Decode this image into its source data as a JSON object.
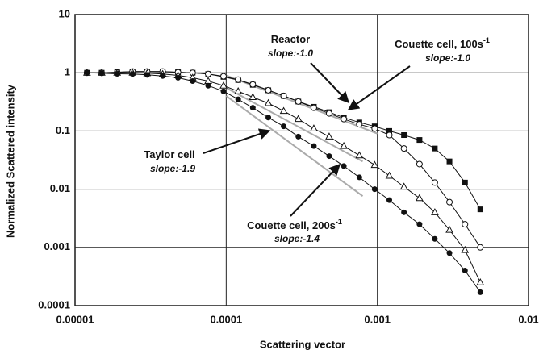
{
  "chart_data": {
    "type": "scatter",
    "xlabel": "Scattering vector",
    "ylabel": "Normalized Scattered intensity",
    "log_x": true,
    "log_y": true,
    "grid": true,
    "xlim": [
      1e-05,
      0.01
    ],
    "xticks": [
      1e-05,
      0.0001,
      0.001,
      0.01
    ],
    "ylim": [
      0.0001,
      10
    ],
    "yticks": [
      0.0001,
      0.001,
      0.01,
      0.1,
      1,
      10
    ],
    "x": [
      1.2e-05,
      1.5e-05,
      1.9e-05,
      2.4e-05,
      3e-05,
      3.8e-05,
      4.8e-05,
      6e-05,
      7.6e-05,
      9.6e-05,
      0.00012,
      0.00015,
      0.00019,
      0.00024,
      0.0003,
      0.00038,
      0.00048,
      0.0006,
      0.00076,
      0.00096,
      0.0012,
      0.0015,
      0.0019,
      0.0024,
      0.003,
      0.0038,
      0.0048
    ],
    "series": [
      {
        "marker": "filled-square",
        "color": "#111111",
        "values": [
          1,
          1,
          1.02,
          1.05,
          1.05,
          1.05,
          1.02,
          1,
          0.95,
          0.85,
          0.75,
          0.62,
          0.5,
          0.4,
          0.32,
          0.26,
          0.21,
          0.17,
          0.14,
          0.12,
          0.1,
          0.085,
          0.07,
          0.05,
          0.03,
          0.013,
          0.0045
        ]
      },
      {
        "marker": "open-circle",
        "color": "#111111",
        "values": [
          1,
          1,
          1.02,
          1.05,
          1.05,
          1.05,
          1.02,
          1,
          0.95,
          0.87,
          0.76,
          0.63,
          0.5,
          0.4,
          0.32,
          0.25,
          0.2,
          0.16,
          0.13,
          0.11,
          0.085,
          0.05,
          0.027,
          0.013,
          0.006,
          0.0025,
          0.001
        ]
      },
      {
        "marker": "open-triangle",
        "color": "#111111",
        "values": [
          1,
          1,
          1,
          1,
          0.98,
          0.95,
          0.9,
          0.82,
          0.72,
          0.6,
          0.48,
          0.38,
          0.3,
          0.22,
          0.16,
          0.11,
          0.08,
          0.055,
          0.038,
          0.026,
          0.017,
          0.011,
          0.007,
          0.004,
          0.002,
          0.0009,
          0.00025
        ]
      },
      {
        "marker": "filled-circle",
        "color": "#111111",
        "values": [
          1,
          0.98,
          0.96,
          0.95,
          0.92,
          0.88,
          0.82,
          0.72,
          0.6,
          0.48,
          0.35,
          0.25,
          0.17,
          0.12,
          0.08,
          0.055,
          0.037,
          0.025,
          0.016,
          0.01,
          0.0065,
          0.004,
          0.0025,
          0.0014,
          0.0008,
          0.0004,
          0.00017
        ]
      }
    ],
    "fit_lines": [
      {
        "color": "#aaaaaa",
        "x": [
          0.0001,
          0.001
        ],
        "values": [
          0.9,
          0.09
        ]
      },
      {
        "color": "#aaaaaa",
        "x": [
          0.0001,
          0.0008
        ],
        "values": [
          0.55,
          0.03
        ]
      },
      {
        "color": "#aaaaaa",
        "x": [
          0.0001,
          0.0008
        ],
        "values": [
          0.4,
          0.0076
        ]
      }
    ],
    "annotations": [
      {
        "label": "Reactor",
        "slope": "slope:-1.0"
      },
      {
        "label": "Couette cell, 100s",
        "superscript": "-1",
        "slope": "slope:-1.0"
      },
      {
        "label": "Taylor cell",
        "slope": "slope:-1.9"
      },
      {
        "label": "Couette cell, 200s",
        "superscript": "-1",
        "slope": "slope:-1.4"
      }
    ]
  }
}
